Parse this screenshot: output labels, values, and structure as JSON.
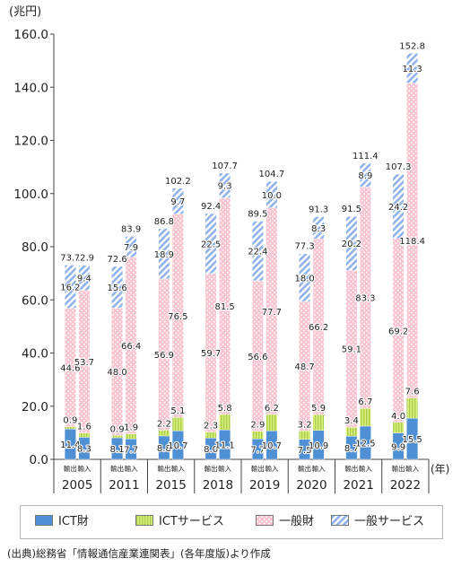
{
  "chart_data": {
    "type": "bar",
    "stacked": true,
    "unit_label": "(兆円)",
    "x_unit_label": "(年)",
    "ylim": [
      0,
      160
    ],
    "yticks": [
      "0.0",
      "20.0",
      "40.0",
      "60.0",
      "80.0",
      "100.0",
      "120.0",
      "140.0",
      "160.0"
    ],
    "grid": false,
    "legend_position": "bottom",
    "years": [
      "2005",
      "2011",
      "2015",
      "2018",
      "2019",
      "2020",
      "2021",
      "2022"
    ],
    "bar_labels": [
      "輸出",
      "輸入"
    ],
    "categories": [
      "2005 輸出",
      "2005 輸入",
      "2011 輸出",
      "2011 輸入",
      "2015 輸出",
      "2015 輸入",
      "2018 輸出",
      "2018 輸入",
      "2019 輸出",
      "2019 輸入",
      "2020 輸出",
      "2020 輸入",
      "2021 輸出",
      "2021 輸入",
      "2022 輸出",
      "2022 輸入"
    ],
    "series": [
      {
        "name": "ICT財",
        "color": "#4f8fd3",
        "values": [
          11.4,
          8.3,
          8.1,
          7.7,
          8.8,
          10.7,
          8.0,
          11.1,
          7.7,
          10.7,
          7.5,
          10.9,
          8.7,
          12.5,
          9.9,
          15.5
        ]
      },
      {
        "name": "ICTサービス",
        "color": "#c8e86a",
        "values": [
          0.9,
          1.6,
          0.9,
          1.9,
          2.2,
          5.1,
          2.3,
          5.8,
          2.9,
          6.2,
          3.2,
          5.9,
          3.4,
          6.7,
          4.0,
          7.6
        ]
      },
      {
        "name": "一般財",
        "color": "#f7b9c5",
        "values": [
          44.6,
          53.7,
          48.0,
          66.4,
          56.9,
          76.5,
          59.7,
          81.5,
          56.6,
          77.7,
          48.7,
          66.2,
          59.1,
          83.3,
          69.2,
          118.4
        ]
      },
      {
        "name": "一般サービス",
        "color": "#9bbcea",
        "values": [
          16.2,
          9.4,
          15.6,
          7.9,
          18.9,
          9.7,
          22.5,
          9.3,
          22.4,
          10.0,
          18.0,
          8.3,
          20.2,
          8.9,
          24.2,
          11.3
        ]
      }
    ],
    "totals": [
      73.1,
      72.9,
      72.6,
      83.9,
      86.8,
      102.2,
      92.4,
      107.7,
      89.5,
      104.7,
      77.3,
      91.3,
      91.5,
      111.4,
      107.3,
      152.8
    ],
    "series_labels": [
      [
        "11.4",
        "8.3",
        "8.1",
        "7.7",
        "8.8",
        "10.7",
        "8.0",
        "11.1",
        "7.7",
        "10.7",
        "7.5",
        "10.9",
        "8.7",
        "12.5",
        "9.9",
        "15.5"
      ],
      [
        "0.9",
        "1.6",
        "0.9",
        "1.9",
        "2.2",
        "5.1",
        "2.3",
        "5.8",
        "2.9",
        "6.2",
        "3.2",
        "5.9",
        "3.4",
        "6.7",
        "4.0",
        "7.6"
      ],
      [
        "44.6",
        "53.7",
        "48.0",
        "66.4",
        "56.9",
        "76.5",
        "59.7",
        "81.5",
        "56.6",
        "77.7",
        "48.7",
        "66.2",
        "59.1",
        "83.3",
        "69.2",
        "118.4"
      ],
      [
        "16.2",
        "9.4",
        "15.6",
        "7.9",
        "18.9",
        "9.7",
        "22.5",
        "9.3",
        "22.4",
        "10.0",
        "18.0",
        "8.3",
        "20.2",
        "8.9",
        "24.2",
        "11.3"
      ]
    ],
    "total_labels": [
      "73.1",
      "72.9",
      "72.6",
      "83.9",
      "86.8",
      "102.2",
      "92.4",
      "107.7",
      "89.5",
      "104.7",
      "77.3",
      "91.3",
      "91.5",
      "111.4",
      "107.3",
      "152.8"
    ]
  },
  "source_note": "(出典)総務省「情報通信産業連関表」(各年度版)より作成"
}
